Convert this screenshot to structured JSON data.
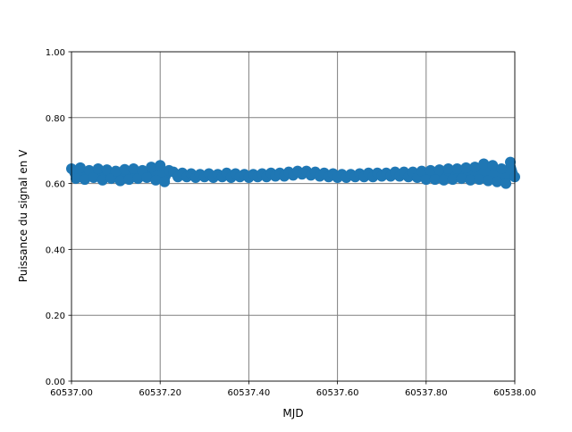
{
  "chart_data": {
    "type": "scatter",
    "title": "",
    "xlabel": "MJD",
    "ylabel": "Puissance du signal en V",
    "xlim": [
      60537.0,
      60538.0
    ],
    "ylim": [
      0.0,
      1.0
    ],
    "grid": true,
    "marker_color": "#1f77b4",
    "grid_color": "#808080",
    "xticks": [
      60537.0,
      60537.2,
      60537.4,
      60537.6,
      60537.8,
      60538.0
    ],
    "xtick_labels": [
      "60537.00",
      "60537.20",
      "60537.40",
      "60537.60",
      "60537.80",
      "60538.00"
    ],
    "yticks": [
      0.0,
      0.2,
      0.4,
      0.6,
      0.8,
      1.0
    ],
    "ytick_labels": [
      "0.00",
      "0.20",
      "0.40",
      "0.60",
      "0.80",
      "1.00"
    ],
    "x_start": 60537.0,
    "x_step": 0.01,
    "y": [
      0.645,
      0.615,
      0.648,
      0.612,
      0.64,
      0.618,
      0.645,
      0.61,
      0.642,
      0.615,
      0.638,
      0.608,
      0.643,
      0.612,
      0.645,
      0.615,
      0.64,
      0.618,
      0.65,
      0.61,
      0.655,
      0.605,
      0.64,
      0.635,
      0.62,
      0.632,
      0.62,
      0.63,
      0.618,
      0.628,
      0.62,
      0.63,
      0.618,
      0.628,
      0.62,
      0.632,
      0.618,
      0.63,
      0.62,
      0.628,
      0.618,
      0.628,
      0.62,
      0.63,
      0.62,
      0.632,
      0.622,
      0.632,
      0.622,
      0.635,
      0.625,
      0.638,
      0.628,
      0.638,
      0.625,
      0.635,
      0.622,
      0.632,
      0.62,
      0.63,
      0.618,
      0.628,
      0.618,
      0.628,
      0.62,
      0.63,
      0.62,
      0.632,
      0.62,
      0.632,
      0.622,
      0.632,
      0.622,
      0.635,
      0.622,
      0.635,
      0.62,
      0.635,
      0.618,
      0.638,
      0.612,
      0.64,
      0.612,
      0.642,
      0.61,
      0.645,
      0.612,
      0.645,
      0.615,
      0.648,
      0.61,
      0.65,
      0.612,
      0.66,
      0.608,
      0.655,
      0.605,
      0.645,
      0.6,
      0.665,
      0.62
    ]
  }
}
